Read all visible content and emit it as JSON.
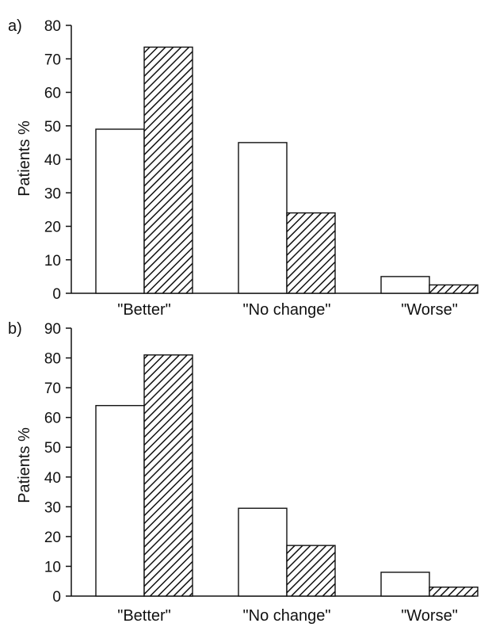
{
  "chart_data": [
    {
      "type": "bar",
      "panel_label": "a)",
      "categories": [
        "\"Better\"",
        "\"No change\"",
        "\"Worse\""
      ],
      "series": [
        {
          "values": [
            49,
            45,
            5
          ],
          "fill": "open",
          "color": "#ffffff"
        },
        {
          "values": [
            73.5,
            24,
            2.5
          ],
          "fill": "hatched",
          "color": "#111111"
        }
      ],
      "ylabel": "Patients %",
      "ylim": [
        0,
        80
      ],
      "yticks": [
        0,
        10,
        20,
        30,
        40,
        50,
        60,
        70,
        80
      ],
      "ytick_labels": [
        "0",
        "10",
        "20",
        "30",
        "40",
        "50",
        "60",
        "70",
        "80"
      ],
      "grid": false
    },
    {
      "type": "bar",
      "panel_label": "b)",
      "categories": [
        "\"Better\"",
        "\"No change\"",
        "\"Worse\""
      ],
      "series": [
        {
          "values": [
            64,
            29.5,
            8
          ],
          "fill": "open",
          "color": "#ffffff"
        },
        {
          "values": [
            81,
            17,
            3
          ],
          "fill": "hatched",
          "color": "#111111"
        }
      ],
      "ylabel": "Patients %",
      "ylim": [
        0,
        90
      ],
      "yticks": [
        0,
        10,
        20,
        30,
        40,
        50,
        60,
        70,
        80,
        90
      ],
      "ytick_labels": [
        "0",
        "10",
        "20",
        "30",
        "40",
        "50",
        "60",
        "70",
        "80",
        "90"
      ],
      "grid": false
    }
  ]
}
